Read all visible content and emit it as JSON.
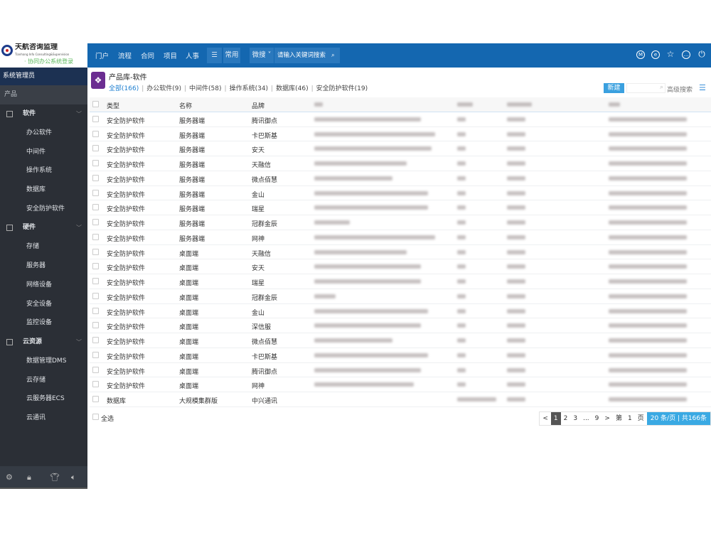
{
  "logo": {
    "name": "天航咨询监理",
    "en": "Tianhang Info Consulting&Supervision",
    "subtitle": "· 协同办公系统登录"
  },
  "header": {
    "nav": [
      "门户",
      "流程",
      "合同",
      "项目",
      "人事"
    ],
    "menu_icon": "menu-icon",
    "common": "常用",
    "search_scope": "微搜",
    "search_placeholder": "请输入关键词搜索",
    "icons": [
      "m-circle-icon",
      "e-circle-icon",
      "star-icon",
      "more-circle-icon",
      "power-icon"
    ]
  },
  "sidebar": {
    "user": "系统管理员",
    "section": "产品",
    "groups": [
      {
        "label": "软件",
        "items": [
          "办公软件",
          "中间件",
          "操作系统",
          "数据库",
          "安全防护软件"
        ]
      },
      {
        "label": "硬件",
        "items": [
          "存储",
          "服务器",
          "网络设备",
          "安全设备",
          "监控设备"
        ]
      },
      {
        "label": "云资源",
        "items": [
          "数据管理DMS",
          "云存储",
          "云服务器ECS",
          "云通讯"
        ]
      }
    ],
    "footer_icons": [
      "settings-icon",
      "lock-icon",
      "shirt-icon",
      "speaker-icon"
    ]
  },
  "main": {
    "title": "产品库-软件",
    "filters": [
      "全部(166)",
      "办公软件(9)",
      "中间件(58)",
      "操作系统(34)",
      "数据库(46)",
      "安全防护软件(19)"
    ],
    "active_filter": 0,
    "new_label": "新建",
    "advanced_search": "高级搜索",
    "columns": [
      "类型",
      "名称",
      "品牌"
    ],
    "rows": [
      [
        "安全防护软件",
        "服务器端",
        "腾讯御点"
      ],
      [
        "安全防护软件",
        "服务器端",
        "卡巴斯基"
      ],
      [
        "安全防护软件",
        "服务器端",
        "安天"
      ],
      [
        "安全防护软件",
        "服务器端",
        "天融信"
      ],
      [
        "安全防护软件",
        "服务器端",
        "微点佰慧"
      ],
      [
        "安全防护软件",
        "服务器端",
        "金山"
      ],
      [
        "安全防护软件",
        "服务器端",
        "瑞星"
      ],
      [
        "安全防护软件",
        "服务器端",
        "冠群金辰"
      ],
      [
        "安全防护软件",
        "服务器端",
        "网神"
      ],
      [
        "安全防护软件",
        "桌面端",
        "天融信"
      ],
      [
        "安全防护软件",
        "桌面端",
        "安天"
      ],
      [
        "安全防护软件",
        "桌面端",
        "瑞星"
      ],
      [
        "安全防护软件",
        "桌面端",
        "冠群金辰"
      ],
      [
        "安全防护软件",
        "桌面端",
        "金山"
      ],
      [
        "安全防护软件",
        "桌面端",
        "深信服"
      ],
      [
        "安全防护软件",
        "桌面端",
        "微点佰慧"
      ],
      [
        "安全防护软件",
        "桌面端",
        "卡巴斯基"
      ],
      [
        "安全防护软件",
        "桌面端",
        "腾讯御点"
      ],
      [
        "安全防护软件",
        "桌面端",
        "网神"
      ],
      [
        "数据库",
        "大规模集群版",
        "中兴通讯"
      ]
    ],
    "select_all": "全选",
    "pagination": {
      "prev": "<",
      "pages": [
        "1",
        "2",
        "3",
        "...",
        "9"
      ],
      "current": "1",
      "next": ">",
      "goto_prefix": "第",
      "goto_value": "1",
      "goto_suffix": "页",
      "page_info": "20 条/页 | 共166条"
    }
  }
}
